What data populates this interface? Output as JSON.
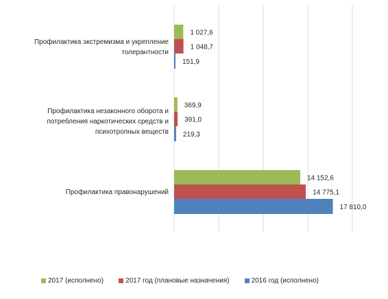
{
  "chart_data": {
    "type": "bar",
    "orientation": "horizontal",
    "categories": [
      "Профилактика экстремизма и укрепление толерантности",
      "Профилактика незаконного оборота и потребления наркотических средств и психотропных веществ",
      "Профилактика правонарушений"
    ],
    "series": [
      {
        "name": "2017 (исполнено)",
        "color": "#9BBB59",
        "values": [
          1027.6,
          369.9,
          14152.6
        ],
        "labels": [
          "1 027,6",
          "369,9",
          "14 152,6"
        ]
      },
      {
        "name": "2017 год (плановые назначения)",
        "color": "#C0504D",
        "values": [
          1048.7,
          391.0,
          14775.1
        ],
        "labels": [
          "1 048,7",
          "391,0",
          "14 775,1"
        ]
      },
      {
        "name": "2016 год (исполнено)",
        "color": "#4F81BD",
        "values": [
          151.9,
          219.3,
          17810.0
        ],
        "labels": [
          "151,9",
          "219,3",
          "17 810,0"
        ]
      }
    ],
    "xlim": [
      0,
      20000
    ],
    "grid": true,
    "legend_position": "bottom"
  }
}
